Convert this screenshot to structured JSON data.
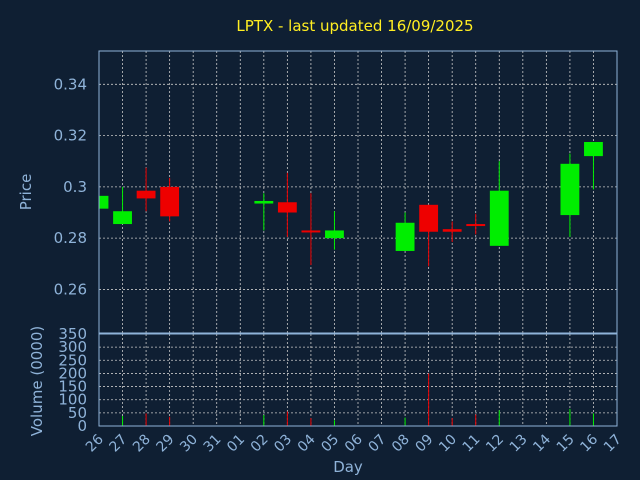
{
  "chart_data": [
    {
      "type": "candlestick",
      "title": "LPTX - last updated 16/09/2025",
      "ylabel": "Price",
      "ylim": [
        0.243,
        0.353
      ],
      "yticks": [
        0.26,
        0.28,
        0.3,
        0.32,
        0.34
      ],
      "ytick_labels": [
        "0.26",
        "0.28",
        "0.3",
        "0.32",
        "0.34"
      ],
      "grid": true,
      "up_color": "#00ee00",
      "down_color": "#ee0000",
      "candles": [
        {
          "day": "26",
          "open": 0.2915,
          "high": 0.297,
          "low": 0.2915,
          "close": 0.2965
        },
        {
          "day": "27",
          "open": 0.2855,
          "high": 0.3,
          "low": 0.2855,
          "close": 0.2905
        },
        {
          "day": "28",
          "open": 0.2985,
          "high": 0.3075,
          "low": 0.2905,
          "close": 0.2955
        },
        {
          "day": "29",
          "open": 0.3,
          "high": 0.3035,
          "low": 0.2865,
          "close": 0.2885
        },
        {
          "day": "02",
          "open": 0.2935,
          "high": 0.2975,
          "low": 0.283,
          "close": 0.2945
        },
        {
          "day": "03",
          "open": 0.294,
          "high": 0.3055,
          "low": 0.2805,
          "close": 0.29
        },
        {
          "day": "04",
          "open": 0.283,
          "high": 0.2975,
          "low": 0.2695,
          "close": 0.2825
        },
        {
          "day": "05",
          "open": 0.28,
          "high": 0.2905,
          "low": 0.2755,
          "close": 0.283
        },
        {
          "day": "08",
          "open": 0.275,
          "high": 0.29,
          "low": 0.275,
          "close": 0.286
        },
        {
          "day": "09",
          "open": 0.293,
          "high": 0.293,
          "low": 0.269,
          "close": 0.2825
        },
        {
          "day": "10",
          "open": 0.2835,
          "high": 0.2865,
          "low": 0.2785,
          "close": 0.2825
        },
        {
          "day": "11",
          "open": 0.2855,
          "high": 0.2895,
          "low": 0.2815,
          "close": 0.285
        },
        {
          "day": "12",
          "open": 0.277,
          "high": 0.31,
          "low": 0.277,
          "close": 0.2985
        },
        {
          "day": "15",
          "open": 0.289,
          "high": 0.313,
          "low": 0.2805,
          "close": 0.309
        },
        {
          "day": "16",
          "open": 0.312,
          "high": 0.3175,
          "low": 0.299,
          "close": 0.3175
        }
      ]
    },
    {
      "type": "bar",
      "ylabel": "Volume (0000)",
      "xlabel": "Day",
      "ylim": [
        0,
        350
      ],
      "yticks": [
        0,
        50,
        100,
        150,
        200,
        250,
        300,
        350
      ],
      "ytick_labels": [
        "0",
        "50",
        "100",
        "150",
        "200",
        "250",
        "300",
        "350"
      ],
      "categories": [
        "26",
        "27",
        "28",
        "29",
        "30",
        "31",
        "01",
        "02",
        "03",
        "04",
        "05",
        "06",
        "07",
        "08",
        "09",
        "10",
        "11",
        "12",
        "13",
        "14",
        "15",
        "16",
        "17"
      ],
      "volumes": [
        {
          "day": "26",
          "value": 0,
          "color": "#00ee00"
        },
        {
          "day": "27",
          "value": 38,
          "color": "#00ee00"
        },
        {
          "day": "28",
          "value": 48,
          "color": "#ee0000"
        },
        {
          "day": "29",
          "value": 35,
          "color": "#ee0000"
        },
        {
          "day": "02",
          "value": 42,
          "color": "#00ee00"
        },
        {
          "day": "03",
          "value": 55,
          "color": "#ee0000"
        },
        {
          "day": "04",
          "value": 30,
          "color": "#ee0000"
        },
        {
          "day": "05",
          "value": 22,
          "color": "#00ee00"
        },
        {
          "day": "08",
          "value": 32,
          "color": "#00ee00"
        },
        {
          "day": "09",
          "value": 200,
          "color": "#ee0000"
        },
        {
          "day": "10",
          "value": 30,
          "color": "#ee0000"
        },
        {
          "day": "11",
          "value": 44,
          "color": "#ee0000"
        },
        {
          "day": "12",
          "value": 60,
          "color": "#00ee00"
        },
        {
          "day": "15",
          "value": 65,
          "color": "#00ee00"
        },
        {
          "day": "16",
          "value": 48,
          "color": "#00ee00"
        }
      ]
    }
  ]
}
